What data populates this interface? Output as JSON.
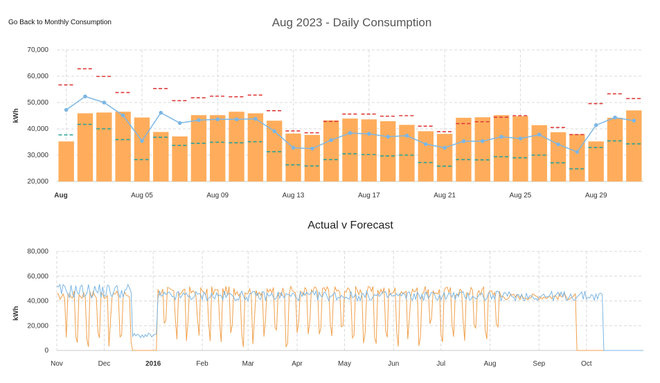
{
  "back_link": "Go Back to Monthly Consumption",
  "chart_data": [
    {
      "type": "bar",
      "title": "Aug 2023 - Daily Consumption",
      "ylabel": "kWh",
      "ylim": [
        20000,
        70000
      ],
      "yticks": [
        20000,
        30000,
        40000,
        50000,
        60000,
        70000
      ],
      "ytick_labels": [
        "20,000",
        "30,000",
        "40,000",
        "50,000",
        "60,000",
        "70,000"
      ],
      "x_labels": [
        {
          "day": 1,
          "label": "Aug",
          "bold": true
        },
        {
          "day": 5,
          "label": "Aug 05"
        },
        {
          "day": 9,
          "label": "Aug 09"
        },
        {
          "day": 13,
          "label": "Aug 13"
        },
        {
          "day": 17,
          "label": "Aug 17"
        },
        {
          "day": 21,
          "label": "Aug 21"
        },
        {
          "day": 25,
          "label": "Aug 25"
        },
        {
          "day": 29,
          "label": "Aug 29"
        }
      ],
      "days": [
        1,
        2,
        3,
        4,
        5,
        6,
        7,
        8,
        9,
        10,
        11,
        12,
        13,
        14,
        15,
        16,
        17,
        18,
        19,
        20,
        21,
        22,
        23,
        24,
        25,
        26,
        27,
        28,
        29,
        30,
        31
      ],
      "series": [
        {
          "kind": "bar",
          "color": "#ffad5c",
          "values": [
            35200,
            45900,
            46200,
            46500,
            44300,
            38800,
            37100,
            45200,
            45200,
            46500,
            45900,
            43100,
            38200,
            37700,
            43200,
            43900,
            43600,
            42900,
            41500,
            39100,
            38100,
            44200,
            44400,
            45200,
            44800,
            41400,
            38700,
            38000,
            35200,
            44200,
            47000
          ]
        },
        {
          "kind": "line",
          "color": "#7bb6e4",
          "values": [
            47200,
            52300,
            50000,
            45100,
            35400,
            46100,
            42200,
            43300,
            43600,
            43600,
            43800,
            39100,
            32800,
            32500,
            35700,
            38400,
            38100,
            37000,
            37400,
            34200,
            32800,
            35300,
            35300,
            37000,
            36300,
            37800,
            34100,
            31200,
            41400,
            44300,
            43100
          ]
        },
        {
          "kind": "dash",
          "color": "#e03a3a",
          "values": [
            56700,
            62800,
            59900,
            53800,
            null,
            55300,
            50700,
            51800,
            52400,
            52200,
            52800,
            46900,
            39200,
            38500,
            42800,
            45600,
            45600,
            44800,
            45000,
            41000,
            38900,
            42000,
            42700,
            44400,
            45000,
            null,
            40500,
            37800,
            49600,
            53300,
            51500
          ]
        },
        {
          "kind": "dash",
          "color": "#2aa198",
          "values": [
            37700,
            41700,
            40000,
            35900,
            28300,
            36800,
            33700,
            34500,
            34900,
            34700,
            35100,
            31300,
            26300,
            25900,
            28300,
            30500,
            30200,
            29700,
            30000,
            27200,
            25800,
            28300,
            28200,
            29400,
            29000,
            30000,
            27100,
            24800,
            32900,
            35400,
            34300
          ]
        }
      ]
    },
    {
      "type": "line",
      "title": "Actual v Forecast",
      "ylabel": "kWh",
      "ylim": [
        0,
        80000
      ],
      "yticks": [
        0,
        20000,
        40000,
        60000,
        80000
      ],
      "ytick_labels": [
        "0",
        "20,000",
        "40,000",
        "60,000",
        "80,000"
      ],
      "x_labels": [
        {
          "label": "Nov",
          "date": "2015-11-01"
        },
        {
          "label": "Dec",
          "date": "2015-12-01"
        },
        {
          "label": "2016",
          "date": "2016-01-01",
          "bold": true
        },
        {
          "label": "Feb",
          "date": "2016-02-01"
        },
        {
          "label": "Mar",
          "date": "2016-03-01"
        },
        {
          "label": "Apr",
          "date": "2016-04-01"
        },
        {
          "label": "May",
          "date": "2016-05-01"
        },
        {
          "label": "Jun",
          "date": "2016-06-01"
        },
        {
          "label": "Jul",
          "date": "2016-07-01"
        },
        {
          "label": "Aug",
          "date": "2016-08-01"
        },
        {
          "label": "Sep",
          "date": "2016-09-01"
        },
        {
          "label": "Oct",
          "date": "2016-10-01"
        }
      ],
      "x_start": "2015-11-01",
      "x_end": "2016-11-06",
      "series": [
        {
          "kind": "line",
          "color": "#f0a04b",
          "segments": [
            {
              "from": "2015-11-01",
              "to": "2015-11-06",
              "level": 44000
            },
            {
              "from": "2015-11-07",
              "to": "2015-12-18",
              "level": 45000,
              "weekly_drop": true
            },
            {
              "from": "2015-12-19",
              "to": "2016-01-03",
              "level": 0
            },
            {
              "from": "2016-01-04",
              "to": "2016-08-07",
              "level": 48000,
              "weekly_drop": true
            },
            {
              "from": "2016-08-08",
              "to": "2016-09-24",
              "level": 44000
            },
            {
              "from": "2016-09-25",
              "to": "2016-11-06",
              "level": 0
            }
          ]
        },
        {
          "kind": "line",
          "color": "#7bb6e4",
          "segments": [
            {
              "from": "2015-11-01",
              "to": "2015-12-18",
              "level": 48000,
              "noise": 6000
            },
            {
              "from": "2015-12-19",
              "to": "2016-01-03",
              "level": 12000,
              "noise": 2000
            },
            {
              "from": "2016-01-04",
              "to": "2016-10-11",
              "level": 44000,
              "noise": 4000
            },
            {
              "from": "2016-10-12",
              "to": "2016-11-06",
              "level": 0,
              "noise": 0
            }
          ]
        }
      ]
    }
  ]
}
